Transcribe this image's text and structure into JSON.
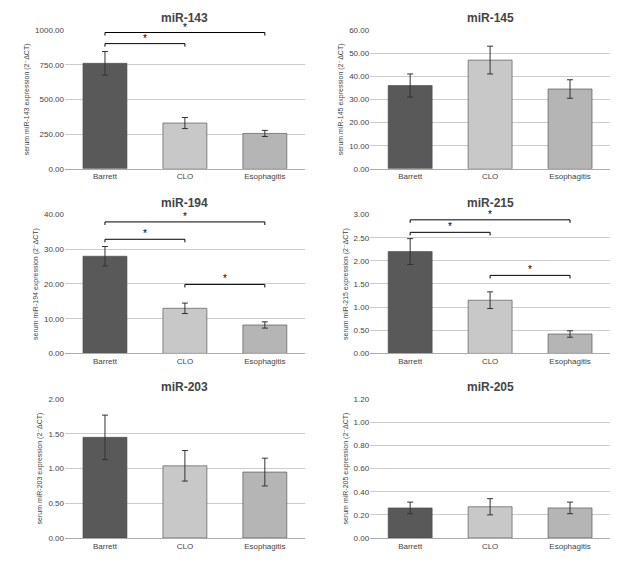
{
  "chart_data": [
    {
      "type": "bar",
      "title": "miR-143",
      "ylabel": "serum miR-143 expression (2⁻ΔCT)",
      "categories": [
        "Barrett",
        "CLO",
        "Esophagitis"
      ],
      "values": [
        760,
        330,
        255
      ],
      "errors": [
        85,
        40,
        22
      ],
      "colors": [
        "#595959",
        "#c8c8c8",
        "#b5b5b5"
      ],
      "ylim": [
        0,
        1000
      ],
      "yticks": [
        {
          "value": 0,
          "label": "0.00"
        },
        {
          "value": 250,
          "label": "250.00"
        },
        {
          "value": 500,
          "label": "500.00"
        },
        {
          "value": 750,
          "label": "750.00"
        },
        {
          "value": 1000,
          "label": "1000.00"
        }
      ],
      "grid": true,
      "annotations": [
        {
          "x1": "Barrett",
          "x2": "CLO",
          "y": 880,
          "text": "*"
        },
        {
          "x1": "Barrett",
          "x2": "Esophagitis",
          "y": 960,
          "text": "*"
        }
      ]
    },
    {
      "type": "bar",
      "title": "miR-145",
      "ylabel": "serum miR-145 expression (2⁻ΔCT)",
      "categories": [
        "Barrett",
        "CLO",
        "Esophagitis"
      ],
      "values": [
        36,
        47,
        34.5
      ],
      "errors": [
        5,
        6,
        4
      ],
      "colors": [
        "#595959",
        "#c8c8c8",
        "#b5b5b5"
      ],
      "ylim": [
        0,
        60
      ],
      "yticks": [
        {
          "value": 0,
          "label": "0.00"
        },
        {
          "value": 10,
          "label": "10.00"
        },
        {
          "value": 20,
          "label": "20.00"
        },
        {
          "value": 30,
          "label": "30.00"
        },
        {
          "value": 40,
          "label": "40.00"
        },
        {
          "value": 50,
          "label": "50.00"
        },
        {
          "value": 60,
          "label": "60.00"
        }
      ],
      "grid": true,
      "annotations": []
    },
    {
      "type": "bar",
      "title": "miR-194",
      "ylabel": "serum miR-194 expression (2⁻ΔCT)",
      "categories": [
        "Barrett",
        "CLO",
        "Esophagitis"
      ],
      "values": [
        28,
        13,
        8.2
      ],
      "errors": [
        2.8,
        1.5,
        0.9
      ],
      "colors": [
        "#595959",
        "#c8c8c8",
        "#b5b5b5"
      ],
      "ylim": [
        0,
        40
      ],
      "yticks": [
        {
          "value": 0,
          "label": "0.00"
        },
        {
          "value": 10,
          "label": "10.00"
        },
        {
          "value": 20,
          "label": "20.00"
        },
        {
          "value": 30,
          "label": "30.00"
        },
        {
          "value": 40,
          "label": "40.00"
        }
      ],
      "grid": true,
      "annotations": [
        {
          "x1": "Barrett",
          "x2": "CLO",
          "y": 32,
          "text": "*"
        },
        {
          "x1": "Barrett",
          "x2": "Esophagitis",
          "y": 37,
          "text": "*"
        },
        {
          "x1": "CLO",
          "x2": "Esophagitis",
          "y": 19,
          "text": "*"
        }
      ]
    },
    {
      "type": "bar",
      "title": "miR-215",
      "ylabel": "serum miR-215 expression (2⁻ΔCT)",
      "categories": [
        "Barrett",
        "CLO",
        "Esophagitis"
      ],
      "values": [
        2.2,
        1.15,
        0.42
      ],
      "errors": [
        0.28,
        0.18,
        0.07
      ],
      "colors": [
        "#595959",
        "#c8c8c8",
        "#b5b5b5"
      ],
      "ylim": [
        0,
        3.0
      ],
      "yticks": [
        {
          "value": 0,
          "label": "0.00"
        },
        {
          "value": 0.5,
          "label": "0.50"
        },
        {
          "value": 1.0,
          "label": "1.00"
        },
        {
          "value": 1.5,
          "label": "1.50"
        },
        {
          "value": 2.0,
          "label": "2.00"
        },
        {
          "value": 2.5,
          "label": "2.50"
        },
        {
          "value": 3.0,
          "label": "3.00"
        }
      ],
      "grid": true,
      "annotations": [
        {
          "x1": "Barrett",
          "x2": "CLO",
          "y": 2.55,
          "text": "*"
        },
        {
          "x1": "Barrett",
          "x2": "Esophagitis",
          "y": 2.82,
          "text": "*"
        },
        {
          "x1": "CLO",
          "x2": "Esophagitis",
          "y": 1.62,
          "text": "*"
        }
      ]
    },
    {
      "type": "bar",
      "title": "miR-203",
      "ylabel": "serum miR-203 expression (2⁻ΔCT)",
      "categories": [
        "Barrett",
        "CLO",
        "Esophagitis"
      ],
      "values": [
        1.45,
        1.04,
        0.95
      ],
      "errors": [
        0.32,
        0.22,
        0.2
      ],
      "colors": [
        "#595959",
        "#c8c8c8",
        "#b5b5b5"
      ],
      "ylim": [
        0,
        2.0
      ],
      "yticks": [
        {
          "value": 0,
          "label": "0.00"
        },
        {
          "value": 0.5,
          "label": "0.50"
        },
        {
          "value": 1.0,
          "label": "1.00"
        },
        {
          "value": 1.5,
          "label": "1.50"
        },
        {
          "value": 2.0,
          "label": "2.00"
        }
      ],
      "grid": true,
      "annotations": []
    },
    {
      "type": "bar",
      "title": "miR-205",
      "ylabel": "serum miR-205 expression (2⁻ΔCT)",
      "categories": [
        "Barrett",
        "CLO",
        "Esophagitis"
      ],
      "values": [
        0.26,
        0.27,
        0.26
      ],
      "errors": [
        0.05,
        0.07,
        0.05
      ],
      "colors": [
        "#595959",
        "#c8c8c8",
        "#b5b5b5"
      ],
      "ylim": [
        0,
        1.2
      ],
      "yticks": [
        {
          "value": 0,
          "label": "0.00"
        },
        {
          "value": 0.2,
          "label": "0.20"
        },
        {
          "value": 0.4,
          "label": "0.40"
        },
        {
          "value": 0.6,
          "label": "0.60"
        },
        {
          "value": 0.8,
          "label": "0.80"
        },
        {
          "value": 1.0,
          "label": "1.00"
        },
        {
          "value": 1.2,
          "label": "1.20"
        }
      ],
      "grid": true,
      "annotations": []
    }
  ]
}
